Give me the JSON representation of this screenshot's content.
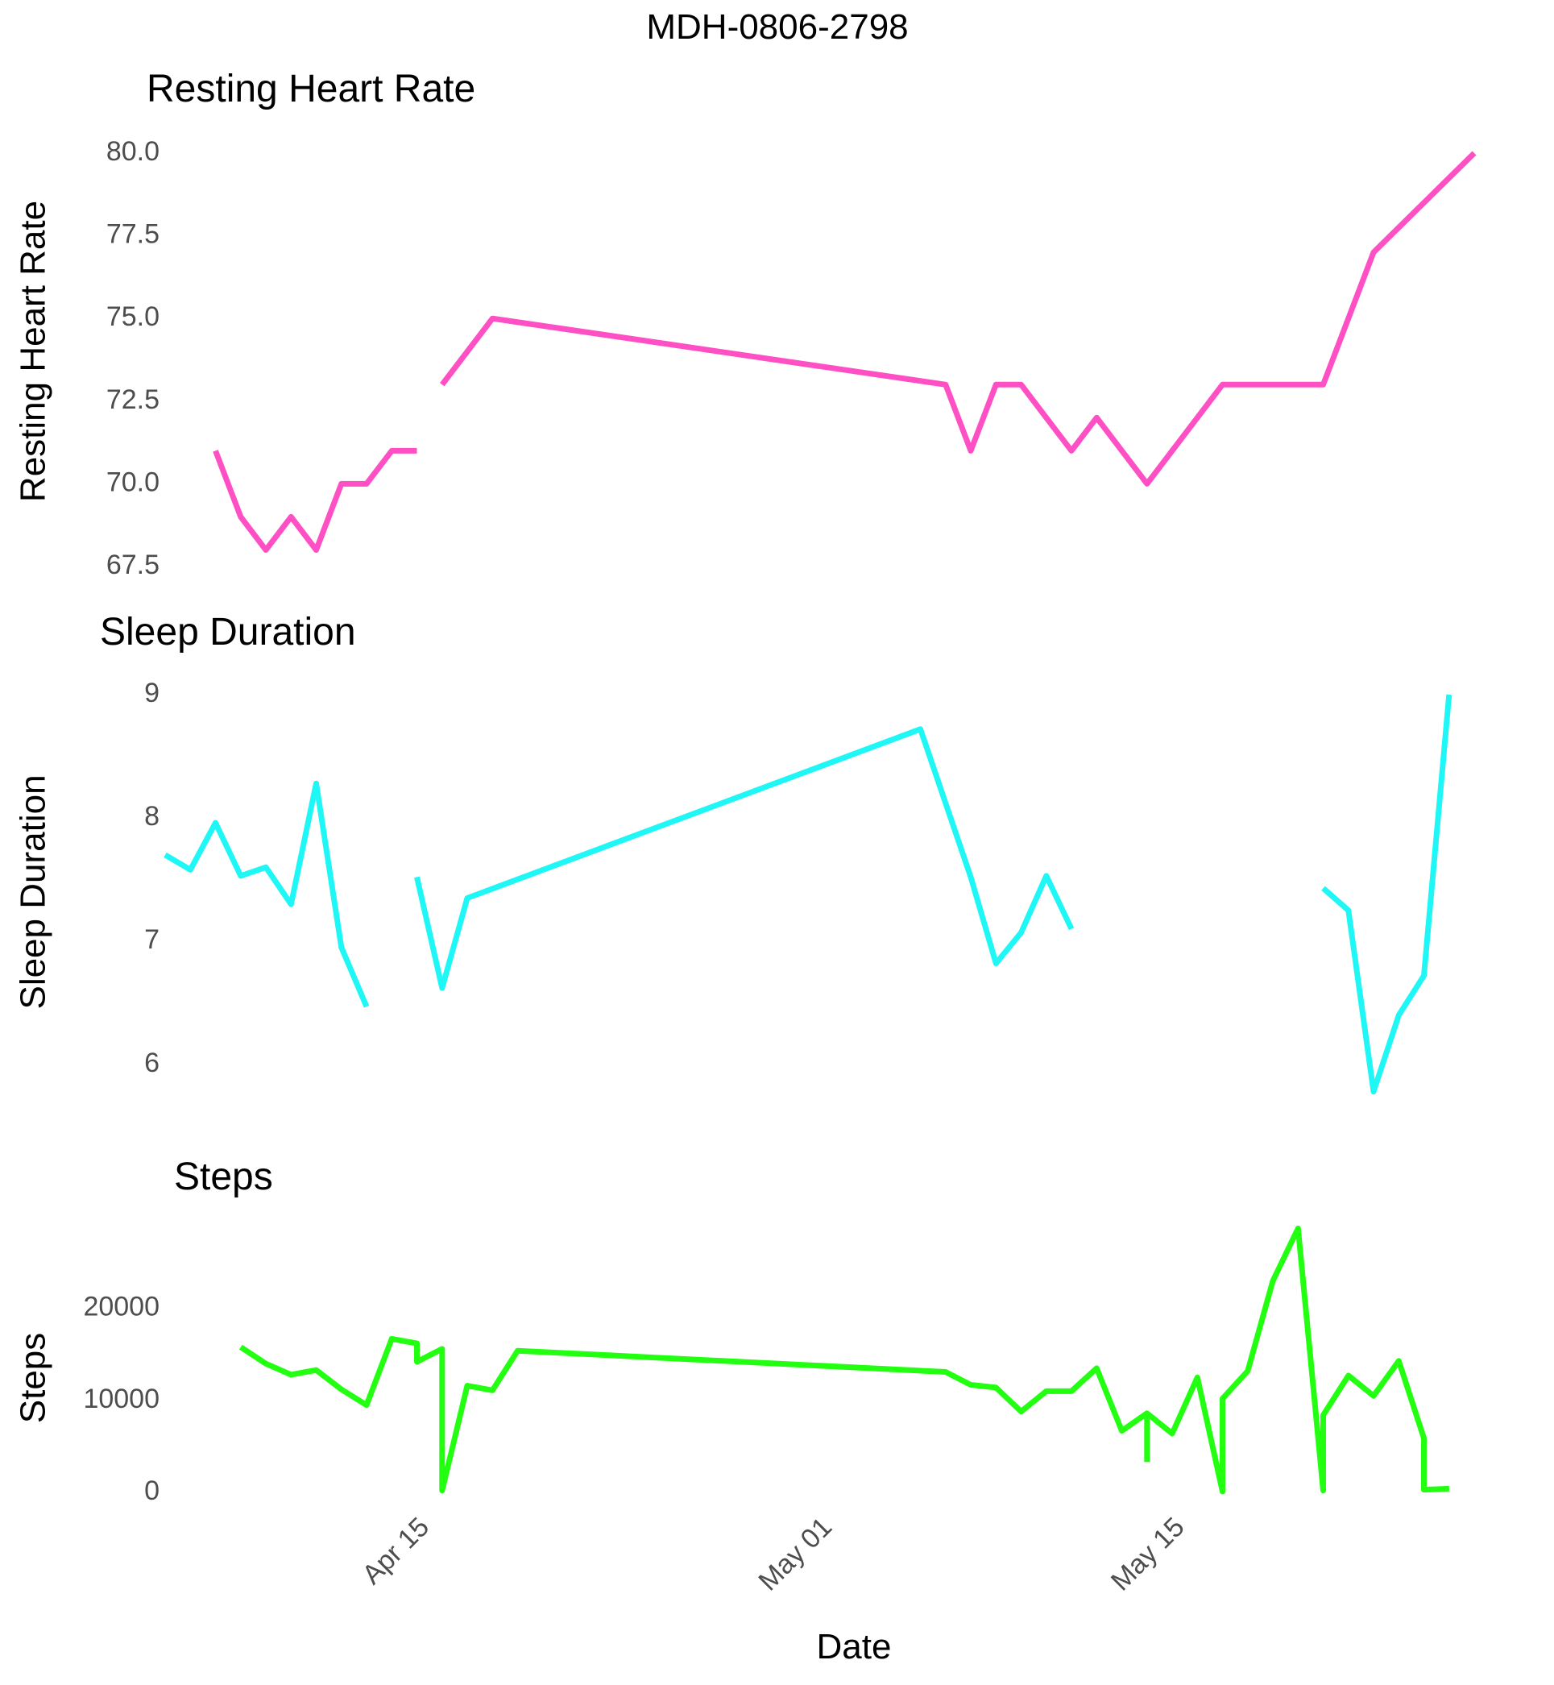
{
  "figure": {
    "title": "MDH-0806-2798",
    "xlabel": "Date"
  },
  "chart_data": [
    {
      "type": "line",
      "title": "Resting Heart Rate",
      "ylabel": "Resting Heart Rate",
      "color": "#ff4fc4",
      "ylim": [
        67.5,
        80.0
      ],
      "yticks": [
        67.5,
        70.0,
        72.5,
        75.0,
        77.5,
        80.0
      ],
      "ytick_labels": [
        "67.5",
        "70.0",
        "72.5",
        "75.0",
        "77.5",
        "80.0"
      ],
      "xlim": [
        "2025-04-05",
        "2025-05-27"
      ],
      "xticks": [
        "2025-04-15",
        "2025-05-01",
        "2025-05-15"
      ],
      "xtick_labels": [
        "Apr 15",
        "May 01",
        "May 15"
      ],
      "segments": [
        [
          [
            "2025-04-07",
            71
          ],
          [
            "2025-04-08",
            69
          ],
          [
            "2025-04-09",
            68
          ],
          [
            "2025-04-10",
            69
          ],
          [
            "2025-04-11",
            68
          ],
          [
            "2025-04-12",
            70
          ],
          [
            "2025-04-13",
            70
          ],
          [
            "2025-04-14",
            71
          ],
          [
            "2025-04-15",
            71
          ]
        ],
        [
          [
            "2025-04-16",
            73
          ],
          [
            "2025-04-18",
            75
          ],
          [
            "2025-05-06",
            73
          ],
          [
            "2025-05-07",
            71
          ],
          [
            "2025-05-08",
            73
          ],
          [
            "2025-05-09",
            73
          ],
          [
            "2025-05-11",
            71
          ],
          [
            "2025-05-12",
            72
          ],
          [
            "2025-05-14",
            70
          ],
          [
            "2025-05-17",
            73
          ],
          [
            "2025-05-21",
            73
          ],
          [
            "2025-05-23",
            77
          ],
          [
            "2025-05-27",
            80
          ]
        ]
      ]
    },
    {
      "type": "line",
      "title": "Sleep Duration",
      "ylabel": "Sleep Duration",
      "color": "#1ff7f7",
      "ylim": [
        6,
        9
      ],
      "yticks": [
        6,
        7,
        8,
        9
      ],
      "ytick_labels": [
        "6",
        "7",
        "8",
        "9"
      ],
      "xlim": [
        "2025-04-05",
        "2025-05-27"
      ],
      "xticks": [
        "2025-04-15",
        "2025-05-01",
        "2025-05-15"
      ],
      "xtick_labels": [
        "Apr 15",
        "May 01",
        "May 15"
      ],
      "segments": [
        [
          [
            "2025-04-05",
            7.7
          ],
          [
            "2025-04-06",
            7.58
          ],
          [
            "2025-04-07",
            7.96
          ],
          [
            "2025-04-08",
            7.53
          ],
          [
            "2025-04-09",
            7.6
          ],
          [
            "2025-04-10",
            7.3
          ],
          [
            "2025-04-11",
            8.28
          ],
          [
            "2025-04-12",
            6.95
          ],
          [
            "2025-04-13",
            6.47
          ]
        ],
        [
          [
            "2025-04-15",
            7.52
          ],
          [
            "2025-04-16",
            6.62
          ],
          [
            "2025-04-17",
            7.35
          ],
          [
            "2025-05-05",
            8.72
          ],
          [
            "2025-05-07",
            7.52
          ],
          [
            "2025-05-08",
            6.82
          ],
          [
            "2025-05-09",
            7.07
          ],
          [
            "2025-05-10",
            7.53
          ],
          [
            "2025-05-11",
            7.1
          ]
        ],
        [
          [
            "2025-05-21",
            7.43
          ],
          [
            "2025-05-22",
            7.25
          ],
          [
            "2025-05-23",
            5.78
          ],
          [
            "2025-05-24",
            6.4
          ],
          [
            "2025-05-25",
            6.72
          ],
          [
            "2025-05-26",
            9.0
          ]
        ]
      ]
    },
    {
      "type": "line",
      "title": "Steps",
      "ylabel": "Steps",
      "color": "#22ff11",
      "ylim": [
        0,
        29000
      ],
      "yticks": [
        0,
        10000,
        20000
      ],
      "ytick_labels": [
        "0",
        "10000",
        "20000"
      ],
      "xlim": [
        "2025-04-05",
        "2025-05-27"
      ],
      "xticks": [
        "2025-04-15",
        "2025-05-01",
        "2025-05-15"
      ],
      "xtick_labels": [
        "Apr 15",
        "May 01",
        "May 15"
      ],
      "segments": [
        [
          [
            "2025-04-08",
            15800
          ],
          [
            "2025-04-09",
            14000
          ],
          [
            "2025-04-10",
            12800
          ],
          [
            "2025-04-11",
            13300
          ],
          [
            "2025-04-12",
            11200
          ],
          [
            "2025-04-13",
            9500
          ],
          [
            "2025-04-14",
            16700
          ],
          [
            "2025-04-15",
            16200
          ],
          [
            "2025-04-15",
            14200
          ],
          [
            "2025-04-16",
            15600
          ],
          [
            "2025-04-16",
            200
          ],
          [
            "2025-04-17",
            11600
          ],
          [
            "2025-04-18",
            11100
          ],
          [
            "2025-04-19",
            15400
          ],
          [
            "2025-05-06",
            13100
          ],
          [
            "2025-05-07",
            11700
          ],
          [
            "2025-05-08",
            11400
          ],
          [
            "2025-05-09",
            8800
          ],
          [
            "2025-05-10",
            11000
          ],
          [
            "2025-05-11",
            11000
          ],
          [
            "2025-05-12",
            13500
          ],
          [
            "2025-05-13",
            6700
          ],
          [
            "2025-05-14",
            8600
          ],
          [
            "2025-05-14",
            3300
          ]
        ],
        [
          [
            "2025-05-14",
            8600
          ],
          [
            "2025-05-15",
            6400
          ],
          [
            "2025-05-16",
            12500
          ],
          [
            "2025-05-17",
            100
          ],
          [
            "2025-05-17",
            10200
          ],
          [
            "2025-05-18",
            13200
          ],
          [
            "2025-05-19",
            23000
          ],
          [
            "2025-05-20",
            28700
          ],
          [
            "2025-05-21",
            200
          ],
          [
            "2025-05-21",
            8400
          ],
          [
            "2025-05-22",
            12700
          ],
          [
            "2025-05-23",
            10500
          ],
          [
            "2025-05-24",
            14300
          ],
          [
            "2025-05-25",
            5900
          ],
          [
            "2025-05-25",
            300
          ],
          [
            "2025-05-26",
            400
          ]
        ]
      ]
    }
  ]
}
